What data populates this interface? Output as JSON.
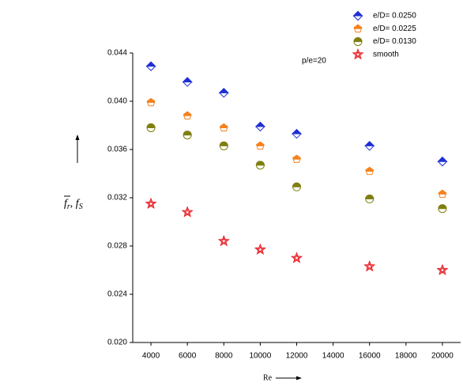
{
  "chart_data": {
    "type": "scatter",
    "annotation": "p/e=20",
    "x_label": "Re",
    "y_label": [
      "f",
      "r",
      ", f",
      "S"
    ],
    "x": [
      4000,
      6000,
      8000,
      10000,
      12000,
      16000,
      20000
    ],
    "xlim": [
      3000,
      21000
    ],
    "xticks": [
      4000,
      6000,
      8000,
      10000,
      12000,
      14000,
      16000,
      18000,
      20000
    ],
    "ylim": [
      0.02,
      0.044
    ],
    "yticks": [
      {
        "value": 0.02,
        "label": "0.020"
      },
      0.024,
      0.028,
      0.032,
      0.036,
      {
        "value": 0.04,
        "label": "0.040"
      },
      0.044
    ],
    "series": [
      {
        "name": "e/D= 0.0250",
        "color": "#1f2fd6",
        "marker": "diamond",
        "values": [
          0.0429,
          0.0416,
          0.0407,
          0.0379,
          0.0373,
          0.0363,
          0.035
        ]
      },
      {
        "name": "e/D= 0.0225",
        "color": "#f5821f",
        "marker": "pentagon",
        "values": [
          0.0399,
          0.0388,
          0.0378,
          0.0363,
          0.0352,
          0.0342,
          0.0323
        ]
      },
      {
        "name": "e/D= 0.0130",
        "color": "#7f7f10",
        "marker": "circle",
        "values": [
          0.0378,
          0.0372,
          0.0363,
          0.0347,
          0.0329,
          0.0319,
          0.0311
        ]
      },
      {
        "name": "smooth",
        "color": "#e8141c",
        "marker": "star",
        "values": [
          0.0315,
          0.0308,
          0.0284,
          0.0277,
          0.027,
          0.0263,
          0.026
        ]
      }
    ]
  }
}
